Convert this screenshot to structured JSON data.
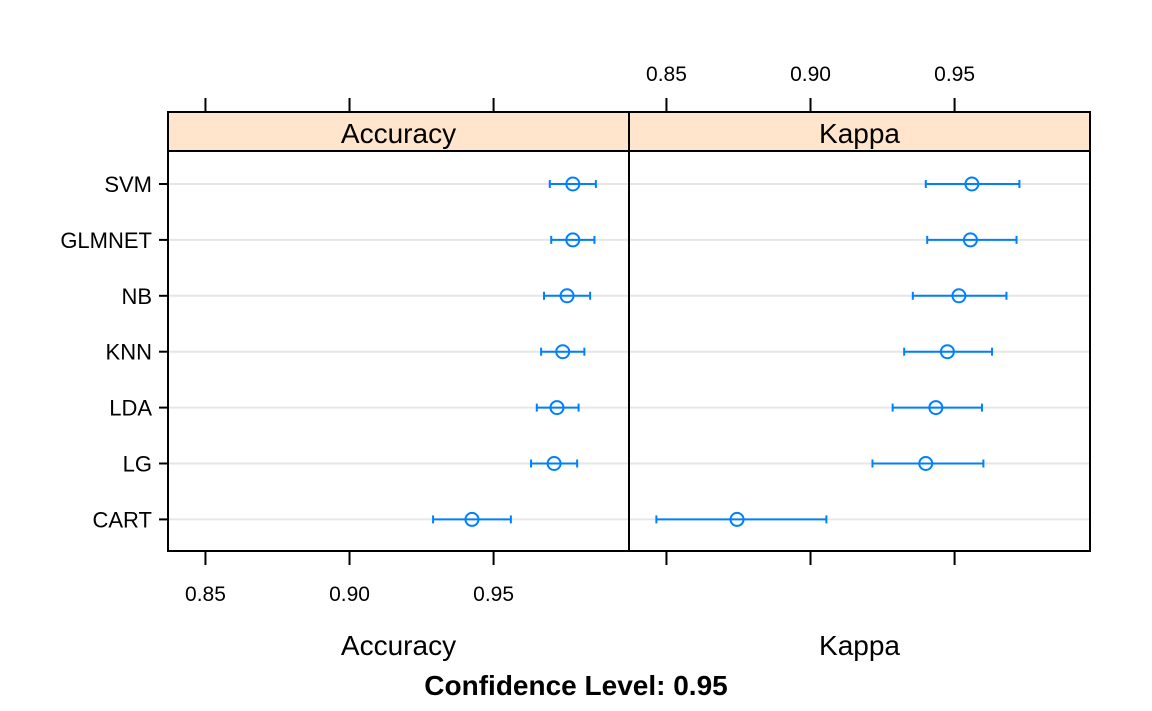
{
  "chart_data": {
    "type": "scatter",
    "title": "Confidence Level: 0.95",
    "categories": [
      "SVM",
      "GLMNET",
      "NB",
      "KNN",
      "LDA",
      "LG",
      "CART"
    ],
    "xlim": [
      0.837,
      0.997
    ],
    "grid": true,
    "panels": [
      {
        "name": "Accuracy",
        "xlabel": "Accuracy",
        "ticks": [
          0.85,
          0.9,
          0.95
        ],
        "tick_labels": [
          "0.85",
          "0.90",
          "0.95"
        ],
        "tick_side": "both",
        "points": [
          {
            "model": "SVM",
            "estimate": 0.9775,
            "lower": 0.9695,
            "upper": 0.9855
          },
          {
            "model": "GLMNET",
            "estimate": 0.9775,
            "lower": 0.97,
            "upper": 0.985
          },
          {
            "model": "NB",
            "estimate": 0.9755,
            "lower": 0.9675,
            "upper": 0.9835
          },
          {
            "model": "KNN",
            "estimate": 0.974,
            "lower": 0.9665,
            "upper": 0.9815
          },
          {
            "model": "LDA",
            "estimate": 0.972,
            "lower": 0.965,
            "upper": 0.9795
          },
          {
            "model": "LG",
            "estimate": 0.971,
            "lower": 0.963,
            "upper": 0.979
          },
          {
            "model": "CART",
            "estimate": 0.9425,
            "lower": 0.929,
            "upper": 0.956
          }
        ]
      },
      {
        "name": "Kappa",
        "xlabel": "Kappa",
        "ticks": [
          0.85,
          0.9,
          0.95
        ],
        "tick_labels": [
          "0.85",
          "0.90",
          "0.95"
        ],
        "tick_side": "top-labeled",
        "points": [
          {
            "model": "SVM",
            "estimate": 0.956,
            "lower": 0.94,
            "upper": 0.9725
          },
          {
            "model": "GLMNET",
            "estimate": 0.9555,
            "lower": 0.9405,
            "upper": 0.9715
          },
          {
            "model": "NB",
            "estimate": 0.9515,
            "lower": 0.9355,
            "upper": 0.968
          },
          {
            "model": "KNN",
            "estimate": 0.9475,
            "lower": 0.9325,
            "upper": 0.963
          },
          {
            "model": "LDA",
            "estimate": 0.9435,
            "lower": 0.9285,
            "upper": 0.9595
          },
          {
            "model": "LG",
            "estimate": 0.94,
            "lower": 0.9215,
            "upper": 0.96
          },
          {
            "model": "CART",
            "estimate": 0.8745,
            "lower": 0.8465,
            "upper": 0.9055
          }
        ]
      }
    ],
    "colors": {
      "point": "#0080ff",
      "strip": "#ffe5cc",
      "grid": "#e6e6e6",
      "frame": "#000000"
    }
  }
}
